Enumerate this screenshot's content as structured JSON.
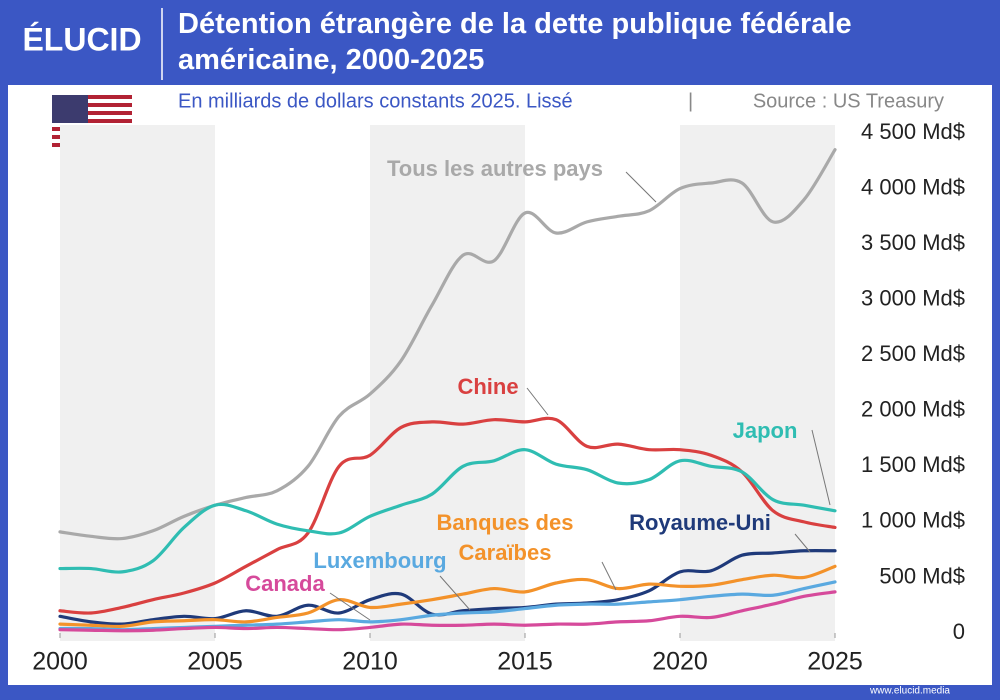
{
  "brand": "ÉLUCID",
  "footer": "www.elucid.media",
  "chart_data": {
    "type": "line",
    "title": "Détention étrangère de la dette publique fédérale américaine, 2000-2025",
    "subtitle": "En milliards de dollars constants 2025. Lissé",
    "source": "Source : US Treasury",
    "x": [
      2000,
      2001,
      2002,
      2003,
      2004,
      2005,
      2006,
      2007,
      2008,
      2009,
      2010,
      2011,
      2012,
      2013,
      2014,
      2015,
      2016,
      2017,
      2018,
      2019,
      2020,
      2021,
      2022,
      2023,
      2024,
      2025
    ],
    "xlim": [
      2000,
      2025
    ],
    "xticks": [
      2000,
      2005,
      2010,
      2015,
      2020,
      2025
    ],
    "ylim": [
      0,
      4500
    ],
    "yticks": [
      0,
      {
        "value": 500,
        "label": "500 Md$"
      },
      {
        "value": 1000,
        "label": "1 000 Md$"
      },
      {
        "value": 1500,
        "label": "1 500 Md$"
      },
      {
        "value": 2000,
        "label": "2 000 Md$"
      },
      {
        "value": 2500,
        "label": "2 500 Md$"
      },
      {
        "value": 3000,
        "label": "3 000 Md$"
      },
      {
        "value": 3500,
        "label": "3 500 Md$"
      },
      {
        "value": 4000,
        "label": "4 000 Md$"
      },
      {
        "value": 4500,
        "label": "4 500 Md$"
      }
    ],
    "series": [
      {
        "name": "Tous les autres pays",
        "color": "#a9a9a9",
        "values": [
          910,
          870,
          850,
          920,
          1050,
          1150,
          1220,
          1280,
          1500,
          1950,
          2150,
          2450,
          2950,
          3400,
          3350,
          3780,
          3600,
          3700,
          3750,
          3800,
          4000,
          4050,
          4050,
          3700,
          3900,
          4350
        ]
      },
      {
        "name": "Chine",
        "color": "#d94040",
        "values": [
          200,
          180,
          230,
          300,
          360,
          450,
          600,
          750,
          900,
          1500,
          1600,
          1850,
          1900,
          1880,
          1920,
          1900,
          1920,
          1680,
          1700,
          1650,
          1650,
          1600,
          1450,
          1100,
          1000,
          950
        ]
      },
      {
        "name": "Japon",
        "color": "#2fbdb2",
        "values": [
          580,
          580,
          550,
          650,
          950,
          1150,
          1100,
          980,
          920,
          900,
          1050,
          1150,
          1250,
          1500,
          1550,
          1650,
          1520,
          1470,
          1350,
          1380,
          1550,
          1500,
          1450,
          1200,
          1150,
          1100
        ]
      },
      {
        "name": "Royaume-Uni",
        "color": "#1f3a7a",
        "values": [
          150,
          100,
          80,
          120,
          150,
          130,
          200,
          150,
          250,
          180,
          300,
          350,
          170,
          200,
          220,
          230,
          260,
          270,
          300,
          380,
          550,
          560,
          700,
          720,
          740,
          740
        ]
      },
      {
        "name": "Banques des Caraïbes",
        "color": "#f3922a",
        "values": [
          80,
          70,
          60,
          100,
          110,
          120,
          100,
          140,
          180,
          300,
          230,
          260,
          300,
          350,
          400,
          370,
          450,
          480,
          400,
          440,
          420,
          430,
          480,
          520,
          500,
          600
        ]
      },
      {
        "name": "Luxembourg",
        "color": "#5aa9e0",
        "values": [
          40,
          40,
          30,
          40,
          50,
          60,
          70,
          80,
          100,
          120,
          100,
          120,
          160,
          180,
          190,
          220,
          250,
          260,
          260,
          280,
          300,
          330,
          350,
          340,
          400,
          460
        ]
      },
      {
        "name": "Canada",
        "color": "#d64a9b",
        "values": [
          30,
          25,
          20,
          25,
          40,
          50,
          40,
          50,
          40,
          30,
          50,
          80,
          70,
          70,
          80,
          70,
          80,
          80,
          100,
          110,
          150,
          140,
          200,
          260,
          330,
          370
        ]
      }
    ]
  }
}
